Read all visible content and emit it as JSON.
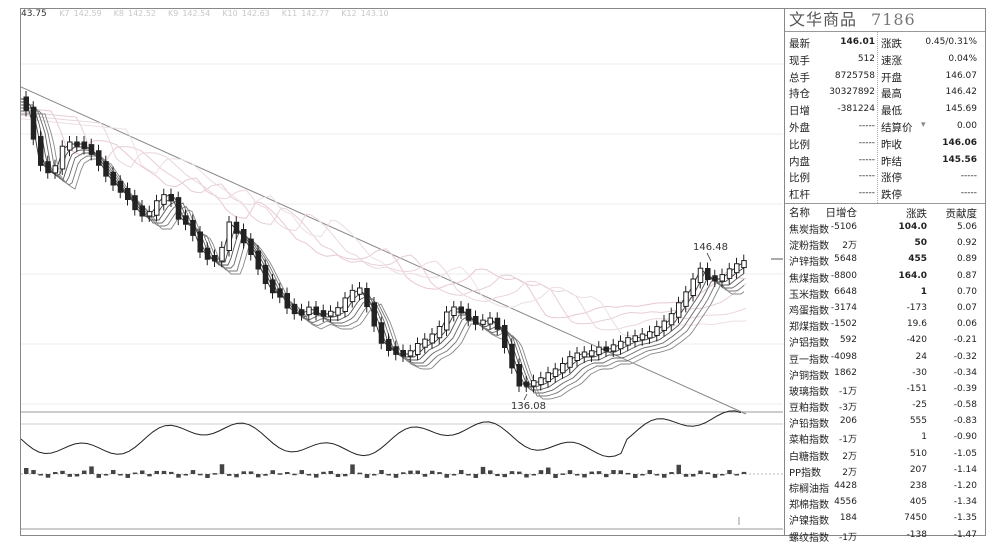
{
  "chart": {
    "current_price_label": "43.75",
    "ma_items": [
      {
        "key": "K7",
        "val": "142.59"
      },
      {
        "key": "K8",
        "val": "142.52"
      },
      {
        "key": "K9",
        "val": "142.54"
      },
      {
        "key": "K10",
        "val": "142.63"
      },
      {
        "key": "K11",
        "val": "142.77"
      },
      {
        "key": "K12",
        "val": "143.10"
      }
    ],
    "high_label": "146.48",
    "low_label": "136.08"
  },
  "chart_data": {
    "type": "candlestick",
    "title": "",
    "high_marker": 146.48,
    "low_marker": 136.08,
    "moving_averages": [
      "K7",
      "K8",
      "K9",
      "K10",
      "K11",
      "K12"
    ]
  },
  "panel": {
    "name": "文华商品",
    "code": "7186",
    "quote": [
      {
        "l1": "最新",
        "v1": "146.01",
        "l2": "涨跌",
        "v2": "0.45/0.31%"
      },
      {
        "l1": "现手",
        "v1": "512",
        "l2": "速涨",
        "v2": "0.04%"
      },
      {
        "l1": "总手",
        "v1": "8725758",
        "l2": "开盘",
        "v2": "146.07"
      },
      {
        "l1": "持仓",
        "v1": "30327892",
        "l2": "最高",
        "v2": "146.42"
      },
      {
        "l1": "日增",
        "v1": "-381224",
        "l2": "最低",
        "v2": "145.69"
      },
      {
        "l1": "外盘",
        "v1": "-----",
        "l2": "结算价",
        "v2": "0.00"
      },
      {
        "l1": "比例",
        "v1": "-----",
        "l2": "昨收",
        "v2": "146.06"
      },
      {
        "l1": "内盘",
        "v1": "-----",
        "l2": "昨结",
        "v2": "145.56"
      },
      {
        "l1": "比例",
        "v1": "-----",
        "l2": "涨停",
        "v2": "-----"
      },
      {
        "l1": "杠杆",
        "v1": "-----",
        "l2": "跌停",
        "v2": "-----"
      }
    ],
    "table_headers": {
      "name": "名称",
      "oi": "日增仓",
      "chg": "涨跌",
      "ctb": "贡献度"
    },
    "rows": [
      {
        "name": "焦炭指数",
        "oi": "-5106",
        "chg": "104.0",
        "ctb": "5.06"
      },
      {
        "name": "淀粉指数",
        "oi": "2万",
        "chg": "50",
        "ctb": "0.92"
      },
      {
        "name": "沪锌指数",
        "oi": "5648",
        "chg": "455",
        "ctb": "0.89"
      },
      {
        "name": "焦煤指数",
        "oi": "-8800",
        "chg": "164.0",
        "ctb": "0.87"
      },
      {
        "name": "玉米指数",
        "oi": "6648",
        "chg": "1",
        "ctb": "0.70"
      },
      {
        "name": "鸡蛋指数",
        "oi": "-3174",
        "chg": "-173",
        "ctb": "0.07"
      },
      {
        "name": "郑煤指数",
        "oi": "-1502",
        "chg": "19.6",
        "ctb": "0.06"
      },
      {
        "name": "沪铝指数",
        "oi": "592",
        "chg": "-420",
        "ctb": "-0.21"
      },
      {
        "name": "豆一指数",
        "oi": "-4098",
        "chg": "24",
        "ctb": "-0.32"
      },
      {
        "name": "沪铜指数",
        "oi": "1862",
        "chg": "-30",
        "ctb": "-0.34"
      },
      {
        "name": "玻璃指数",
        "oi": "-1万",
        "chg": "-151",
        "ctb": "-0.39"
      },
      {
        "name": "豆粕指数",
        "oi": "-3万",
        "chg": "-25",
        "ctb": "-0.58"
      },
      {
        "name": "沪铅指数",
        "oi": "206",
        "chg": "555",
        "ctb": "-0.83"
      },
      {
        "name": "菜粕指数",
        "oi": "-1万",
        "chg": "1",
        "ctb": "-0.90"
      },
      {
        "name": "白糖指数",
        "oi": "2万",
        "chg": "510",
        "ctb": "-1.05"
      },
      {
        "name": "PP指数",
        "oi": "2万",
        "chg": "207",
        "ctb": "-1.14"
      },
      {
        "name": "棕榈油指",
        "oi": "4428",
        "chg": "238",
        "ctb": "-1.20"
      },
      {
        "name": "郑棉指数",
        "oi": "4556",
        "chg": "405",
        "ctb": "-1.34"
      },
      {
        "name": "沪镍指数",
        "oi": "184",
        "chg": "7450",
        "ctb": "-1.35"
      },
      {
        "name": "螺纹指数",
        "oi": "-1万",
        "chg": "-138",
        "ctb": "-1.47"
      }
    ]
  }
}
